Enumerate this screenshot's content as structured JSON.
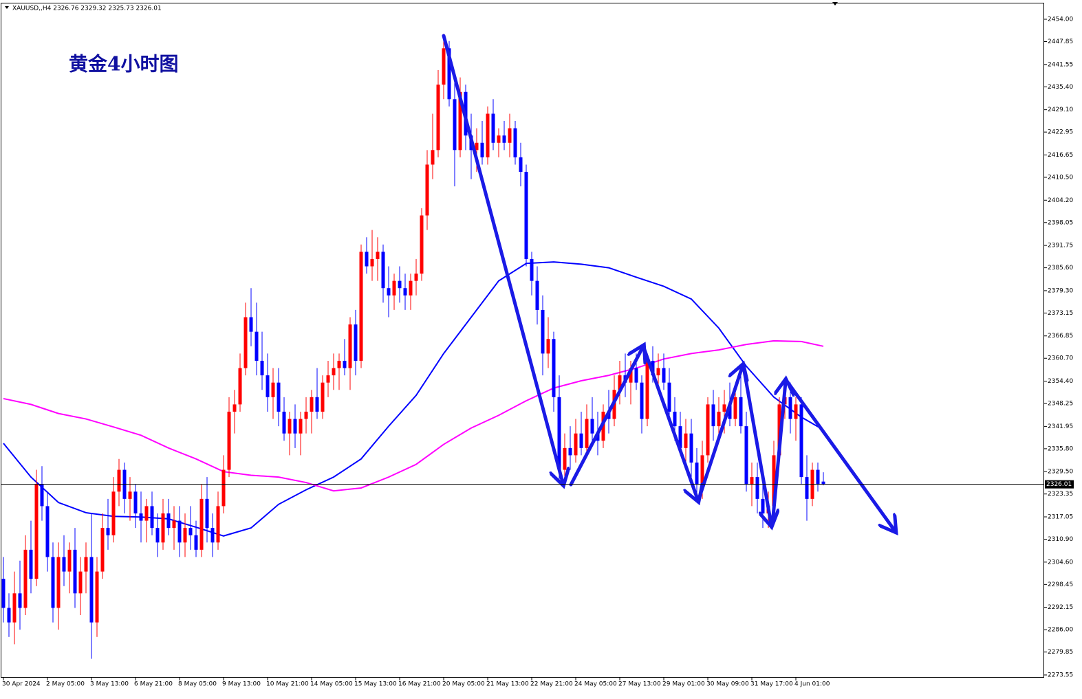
{
  "chart_data": {
    "type": "candlestick",
    "header": "XAUUSD,,H4  2326.76 2329.32 2325.73 2326.01",
    "title": "黄金4小时图",
    "up_color": "#ff0000",
    "down_color": "#0000ff",
    "ylim": [
      2272.98,
      2458.35
    ],
    "yticks": [
      {
        "value": 2454,
        "label": "2454.00"
      },
      2447.85,
      2441.55,
      {
        "value": 2435.4,
        "label": "2435.40"
      },
      {
        "value": 2429.1,
        "label": "2429.10"
      },
      2422.95,
      2416.65,
      {
        "value": 2410.5,
        "label": "2410.50"
      },
      {
        "value": 2404.2,
        "label": "2404.20"
      },
      2398.05,
      2391.75,
      {
        "value": 2385.6,
        "label": "2385.60"
      },
      {
        "value": 2379.3,
        "label": "2379.30"
      },
      2373.15,
      2366.85,
      {
        "value": 2360.7,
        "label": "2360.70"
      },
      {
        "value": 2354.4,
        "label": "2354.40"
      },
      2348.25,
      2341.95,
      {
        "value": 2335.8,
        "label": "2335.80"
      },
      {
        "value": 2329.5,
        "label": "2329.50"
      },
      2323.35,
      2317.05,
      {
        "value": 2310.9,
        "label": "2310.90"
      },
      {
        "value": 2304.6,
        "label": "2304.60"
      },
      2298.45,
      2292.15,
      {
        "value": 2286,
        "label": "2286.00"
      },
      2279.85,
      2273.55
    ],
    "current_price": 2326.01,
    "categories": [
      "30 Apr 2024",
      null,
      null,
      null,
      null,
      null,
      null,
      null,
      "2 May 05:00",
      null,
      null,
      null,
      null,
      null,
      null,
      null,
      "3 May 13:00",
      null,
      null,
      null,
      null,
      null,
      null,
      null,
      "6 May 21:00",
      null,
      null,
      null,
      null,
      null,
      null,
      null,
      "8 May 05:00",
      null,
      null,
      null,
      null,
      null,
      null,
      null,
      "9 May 13:00",
      null,
      null,
      null,
      null,
      null,
      null,
      null,
      "10 May 21:00",
      null,
      null,
      null,
      null,
      null,
      null,
      null,
      "14 May 05:00",
      null,
      null,
      null,
      null,
      null,
      null,
      null,
      "15 May 13:00",
      null,
      null,
      null,
      null,
      null,
      null,
      null,
      "16 May 21:00",
      null,
      null,
      null,
      null,
      null,
      null,
      null,
      "20 May 05:00",
      null,
      null,
      null,
      null,
      null,
      null,
      null,
      "21 May 13:00",
      null,
      null,
      null,
      null,
      null,
      null,
      null,
      "22 May 21:00",
      null,
      null,
      null,
      null,
      null,
      null,
      null,
      "24 May 05:00",
      null,
      null,
      null,
      null,
      null,
      null,
      null,
      "27 May 13:00",
      null,
      null,
      null,
      null,
      null,
      null,
      null,
      "29 May 01:00",
      null,
      null,
      null,
      null,
      null,
      null,
      null,
      "30 May 09:00",
      null,
      null,
      null,
      null,
      null,
      null,
      null,
      "31 May 17:00",
      null,
      null,
      null,
      null,
      null,
      null,
      null,
      "4 Jun 01:00",
      null,
      null,
      null,
      null,
      null
    ],
    "ohlc": [
      [
        2300,
        2306,
        2288,
        2292
      ],
      [
        2292,
        2296,
        2284,
        2288
      ],
      [
        2288,
        2302,
        2282,
        2296
      ],
      [
        2296,
        2305,
        2286,
        2292
      ],
      [
        2292,
        2312,
        2290,
        2308
      ],
      [
        2308,
        2316,
        2296,
        2300
      ],
      [
        2300,
        2330,
        2298,
        2326
      ],
      [
        2326,
        2331,
        2316,
        2320
      ],
      [
        2320,
        2324,
        2302,
        2306
      ],
      [
        2306,
        2310,
        2288,
        2292
      ],
      [
        2292,
        2310,
        2286,
        2306
      ],
      [
        2306,
        2312,
        2298,
        2302
      ],
      [
        2302,
        2310,
        2296,
        2308
      ],
      [
        2308,
        2314,
        2292,
        2296
      ],
      [
        2296,
        2306,
        2290,
        2302
      ],
      [
        2302,
        2310,
        2296,
        2306
      ],
      [
        2306,
        2318,
        2278,
        2288
      ],
      [
        2288,
        2306,
        2284,
        2302
      ],
      [
        2302,
        2318,
        2300,
        2314
      ],
      [
        2314,
        2322,
        2308,
        2312
      ],
      [
        2312,
        2328,
        2310,
        2324
      ],
      [
        2324,
        2333,
        2320,
        2330
      ],
      [
        2330,
        2332,
        2318,
        2322
      ],
      [
        2322,
        2328,
        2316,
        2324
      ],
      [
        2324,
        2326,
        2314,
        2318
      ],
      [
        2318,
        2324,
        2310,
        2316
      ],
      [
        2316,
        2322,
        2310,
        2320
      ],
      [
        2320,
        2324,
        2312,
        2314
      ],
      [
        2314,
        2318,
        2306,
        2310
      ],
      [
        2310,
        2322,
        2308,
        2318
      ],
      [
        2318,
        2322,
        2312,
        2314
      ],
      [
        2314,
        2320,
        2308,
        2316
      ],
      [
        2316,
        2320,
        2306,
        2310
      ],
      [
        2310,
        2318,
        2306,
        2314
      ],
      [
        2314,
        2320,
        2308,
        2312
      ],
      [
        2312,
        2316,
        2306,
        2308
      ],
      [
        2308,
        2326,
        2306,
        2322
      ],
      [
        2322,
        2328,
        2310,
        2314
      ],
      [
        2314,
        2318,
        2306,
        2310
      ],
      [
        2310,
        2324,
        2308,
        2320
      ],
      [
        2320,
        2334,
        2318,
        2330
      ],
      [
        2330,
        2350,
        2328,
        2346
      ],
      [
        2346,
        2352,
        2340,
        2348
      ],
      [
        2348,
        2362,
        2346,
        2358
      ],
      [
        2358,
        2376,
        2356,
        2372
      ],
      [
        2372,
        2380,
        2364,
        2368
      ],
      [
        2368,
        2376,
        2356,
        2360
      ],
      [
        2360,
        2368,
        2352,
        2356
      ],
      [
        2356,
        2362,
        2346,
        2350
      ],
      [
        2350,
        2358,
        2344,
        2354
      ],
      [
        2354,
        2358,
        2342,
        2346
      ],
      [
        2346,
        2350,
        2338,
        2340
      ],
      [
        2340,
        2346,
        2334,
        2344
      ],
      [
        2344,
        2348,
        2336,
        2340
      ],
      [
        2340,
        2346,
        2334,
        2344
      ],
      [
        2344,
        2350,
        2340,
        2346
      ],
      [
        2346,
        2352,
        2340,
        2350
      ],
      [
        2350,
        2358,
        2344,
        2346
      ],
      [
        2346,
        2356,
        2344,
        2354
      ],
      [
        2354,
        2360,
        2350,
        2356
      ],
      [
        2356,
        2362,
        2352,
        2358
      ],
      [
        2358,
        2362,
        2352,
        2360
      ],
      [
        2360,
        2366,
        2356,
        2358
      ],
      [
        2358,
        2372,
        2352,
        2370
      ],
      [
        2370,
        2374,
        2356,
        2360
      ],
      [
        2360,
        2392,
        2358,
        2390
      ],
      [
        2390,
        2394,
        2384,
        2386
      ],
      [
        2386,
        2396,
        2382,
        2388
      ],
      [
        2388,
        2394,
        2382,
        2390
      ],
      [
        2390,
        2392,
        2376,
        2380
      ],
      [
        2380,
        2386,
        2372,
        2378
      ],
      [
        2378,
        2384,
        2374,
        2382
      ],
      [
        2382,
        2386,
        2376,
        2380
      ],
      [
        2380,
        2384,
        2374,
        2378
      ],
      [
        2378,
        2384,
        2374,
        2382
      ],
      [
        2382,
        2388,
        2378,
        2384
      ],
      [
        2384,
        2402,
        2382,
        2400
      ],
      [
        2400,
        2418,
        2396,
        2414
      ],
      [
        2414,
        2428,
        2410,
        2418
      ],
      [
        2418,
        2440,
        2416,
        2436
      ],
      [
        2436,
        2450,
        2432,
        2446
      ],
      [
        2446,
        2448,
        2430,
        2432
      ],
      [
        2432,
        2438,
        2408,
        2418
      ],
      [
        2418,
        2438,
        2416,
        2434
      ],
      [
        2434,
        2436,
        2418,
        2422
      ],
      [
        2422,
        2428,
        2410,
        2418
      ],
      [
        2418,
        2424,
        2412,
        2420
      ],
      [
        2420,
        2426,
        2414,
        2416
      ],
      [
        2416,
        2430,
        2414,
        2428
      ],
      [
        2428,
        2432,
        2418,
        2420
      ],
      [
        2420,
        2424,
        2416,
        2422
      ],
      [
        2422,
        2426,
        2418,
        2420
      ],
      [
        2420,
        2428,
        2416,
        2424
      ],
      [
        2424,
        2426,
        2414,
        2416
      ],
      [
        2416,
        2420,
        2408,
        2412
      ],
      [
        2412,
        2414,
        2386,
        2388
      ],
      [
        2388,
        2390,
        2378,
        2382
      ],
      [
        2382,
        2386,
        2370,
        2374
      ],
      [
        2374,
        2378,
        2356,
        2362
      ],
      [
        2362,
        2372,
        2358,
        2366
      ],
      [
        2366,
        2368,
        2346,
        2350
      ],
      [
        2350,
        2356,
        2326,
        2330
      ],
      [
        2330,
        2340,
        2326,
        2336
      ],
      [
        2336,
        2342,
        2330,
        2334
      ],
      [
        2334,
        2344,
        2332,
        2340
      ],
      [
        2340,
        2346,
        2334,
        2336
      ],
      [
        2336,
        2348,
        2334,
        2344
      ],
      [
        2344,
        2350,
        2338,
        2340
      ],
      [
        2340,
        2346,
        2334,
        2338
      ],
      [
        2338,
        2348,
        2336,
        2346
      ],
      [
        2346,
        2352,
        2340,
        2344
      ],
      [
        2344,
        2356,
        2342,
        2352
      ],
      [
        2352,
        2360,
        2348,
        2356
      ],
      [
        2356,
        2362,
        2350,
        2354
      ],
      [
        2354,
        2360,
        2348,
        2358
      ],
      [
        2358,
        2362,
        2352,
        2354
      ],
      [
        2354,
        2356,
        2340,
        2344
      ],
      [
        2344,
        2362,
        2342,
        2360
      ],
      [
        2360,
        2364,
        2354,
        2356
      ],
      [
        2356,
        2362,
        2352,
        2358
      ],
      [
        2358,
        2362,
        2352,
        2354
      ],
      [
        2354,
        2358,
        2344,
        2346
      ],
      [
        2346,
        2350,
        2338,
        2342
      ],
      [
        2342,
        2346,
        2334,
        2336
      ],
      [
        2336,
        2344,
        2330,
        2340
      ],
      [
        2340,
        2344,
        2328,
        2332
      ],
      [
        2332,
        2336,
        2322,
        2326
      ],
      [
        2326,
        2338,
        2322,
        2334
      ],
      [
        2334,
        2350,
        2332,
        2348
      ],
      [
        2348,
        2352,
        2338,
        2342
      ],
      [
        2342,
        2350,
        2338,
        2346
      ],
      [
        2346,
        2352,
        2340,
        2348
      ],
      [
        2348,
        2354,
        2342,
        2344
      ],
      [
        2344,
        2352,
        2342,
        2350
      ],
      [
        2350,
        2356,
        2340,
        2342
      ],
      [
        2342,
        2346,
        2324,
        2326
      ],
      [
        2326,
        2332,
        2320,
        2328
      ],
      [
        2328,
        2332,
        2318,
        2322
      ],
      [
        2322,
        2328,
        2314,
        2318
      ],
      [
        2318,
        2324,
        2314,
        2320
      ],
      [
        2320,
        2338,
        2318,
        2334
      ],
      [
        2334,
        2350,
        2332,
        2348
      ],
      [
        2348,
        2354,
        2344,
        2350
      ],
      [
        2350,
        2354,
        2340,
        2344
      ],
      [
        2344,
        2350,
        2338,
        2348
      ],
      [
        2348,
        2350,
        2326,
        2328
      ],
      [
        2328,
        2334,
        2316,
        2322
      ],
      [
        2322,
        2332,
        2320,
        2330
      ],
      [
        2330,
        2332,
        2324,
        2326
      ],
      [
        2326.76,
        2329.32,
        2325.73,
        2326.01
      ]
    ],
    "lines": [
      {
        "color": "#0000ff",
        "x": [
          0,
          5,
          10,
          15,
          20,
          25,
          30,
          35,
          40,
          45,
          50,
          55,
          60,
          65,
          70,
          75,
          80,
          85,
          90,
          95,
          100,
          105,
          110,
          115,
          120,
          125,
          130,
          135,
          140,
          145,
          149
        ],
        "values": [
          2337.3,
          2328,
          2321,
          2318.2,
          2317.2,
          2317,
          2316.5,
          2314.2,
          2311.8,
          2314,
          2320.5,
          2324.5,
          2328,
          2333,
          2342,
          2350.5,
          2362,
          2372,
          2382,
          2386.8,
          2387.2,
          2386.6,
          2385.6,
          2383,
          2380.5,
          2377,
          2369,
          2358.5,
          2350,
          2344.5,
          2341
        ]
      },
      {
        "color": "#ff00ff",
        "x": [
          0,
          5,
          10,
          15,
          20,
          25,
          30,
          35,
          40,
          45,
          50,
          55,
          60,
          65,
          70,
          75,
          80,
          85,
          90,
          95,
          100,
          105,
          110,
          115,
          120,
          125,
          130,
          135,
          140,
          145,
          149
        ],
        "values": [
          2349.6,
          2348,
          2345.5,
          2344,
          2341.8,
          2339.5,
          2336,
          2333,
          2329.5,
          2328.5,
          2328,
          2326.5,
          2324.2,
          2325,
          2328,
          2331.5,
          2337,
          2341.5,
          2345,
          2349,
          2352.5,
          2354.5,
          2356,
          2358,
          2360.5,
          2362,
          2363,
          2364.5,
          2365.5,
          2365.3,
          2364
        ]
      }
    ]
  }
}
